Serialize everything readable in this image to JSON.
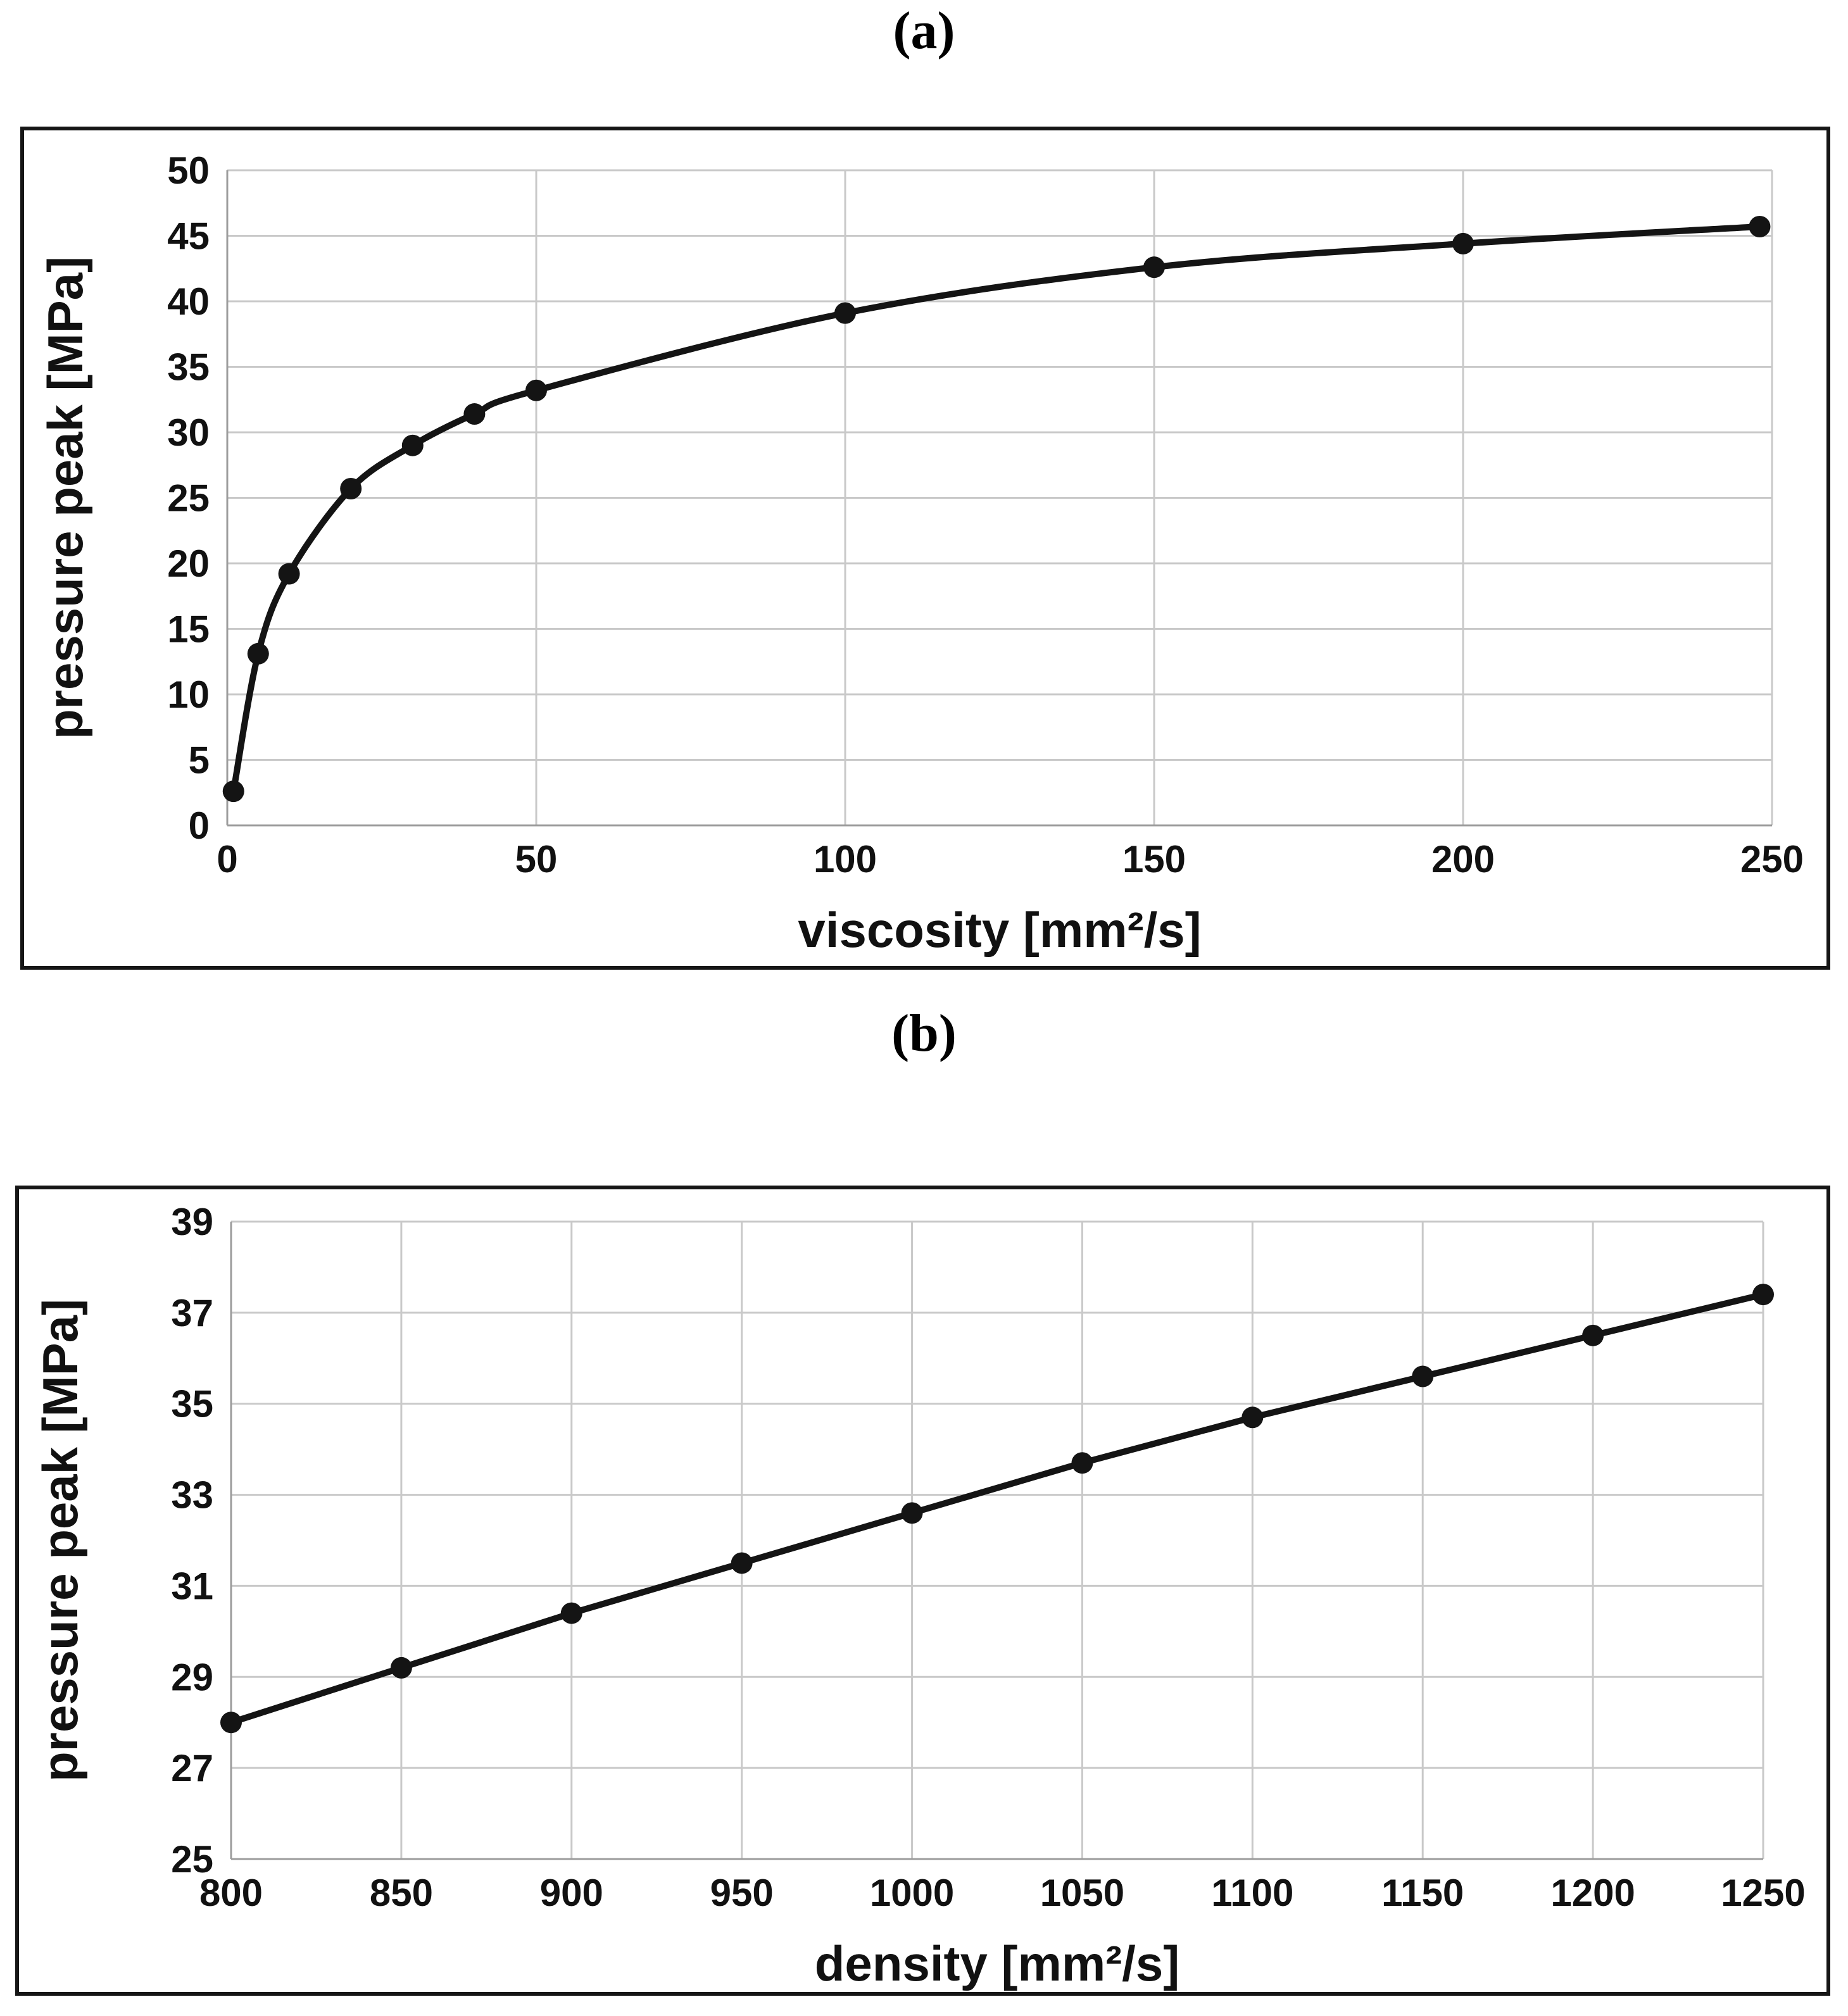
{
  "figure_a": {
    "label": "(a)"
  },
  "figure_b": {
    "label": "(b)"
  },
  "chart_data": [
    {
      "id": "a",
      "type": "line",
      "smooth": true,
      "title": "",
      "xlabel": "viscosity [mm²/s]",
      "ylabel": "pressure peak [MPa]",
      "xlim": [
        0,
        250
      ],
      "ylim": [
        0,
        50
      ],
      "x_tick_step": 50,
      "y_tick_step": 5,
      "grid": true,
      "legend": false,
      "x": [
        1,
        5,
        10,
        20,
        30,
        40,
        50,
        100,
        150,
        200,
        248
      ],
      "y": [
        2.6,
        13.1,
        19.2,
        25.7,
        29.0,
        31.4,
        33.2,
        39.1,
        42.6,
        44.4,
        45.7
      ],
      "line_color": "#141414",
      "marker_color": "#141414",
      "grid_color": "#c9c9c9",
      "axis_color": "#9c9c9c"
    },
    {
      "id": "b",
      "type": "line",
      "smooth": false,
      "title": "",
      "xlabel": "density [mm²/s]",
      "ylabel": "pressure peak [MPa]",
      "xlim": [
        800,
        1250
      ],
      "ylim": [
        25,
        39
      ],
      "x_tick_step": 50,
      "y_tick_step": 2,
      "grid": true,
      "legend": false,
      "x": [
        800,
        850,
        900,
        950,
        1000,
        1050,
        1100,
        1150,
        1200,
        1250
      ],
      "y": [
        28.0,
        29.2,
        30.4,
        31.5,
        32.6,
        33.7,
        34.7,
        35.6,
        36.5,
        37.4
      ],
      "line_color": "#141414",
      "marker_color": "#141414",
      "grid_color": "#c9c9c9",
      "axis_color": "#9c9c9c"
    }
  ]
}
